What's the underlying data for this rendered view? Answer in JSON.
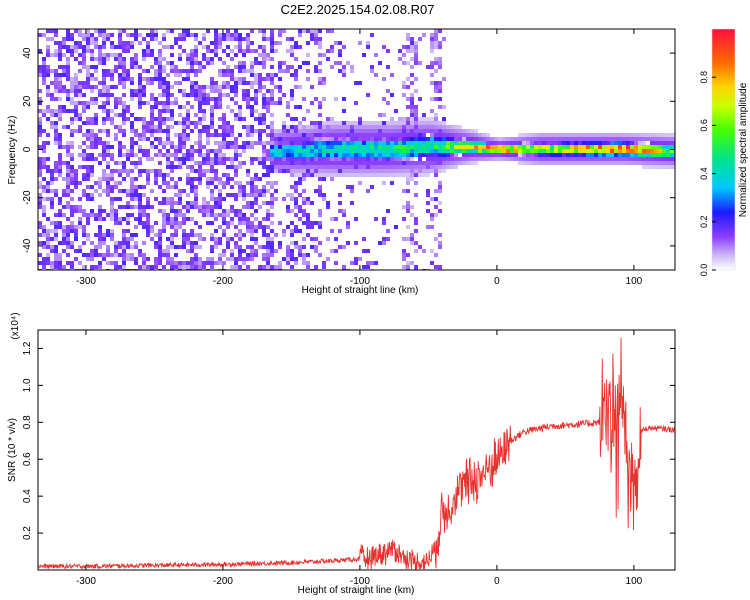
{
  "title": "C2E2.2025.154.02.08.R07",
  "chart_data": [
    {
      "type": "heatmap",
      "xlabel": "Height of straight line (km)",
      "ylabel": "Frequency (Hz)",
      "xlim": [
        -335,
        130
      ],
      "ylim": [
        -50,
        50
      ],
      "xticks": [
        -300,
        -200,
        -100,
        0,
        100
      ],
      "yticks": [
        -40,
        -20,
        0,
        20,
        40
      ],
      "colorbar": {
        "label": "Normalized spectral amplitude",
        "range": [
          0,
          1
        ],
        "ticks": [
          0.0,
          0.2,
          0.4,
          0.6,
          0.8
        ]
      },
      "ridge": [
        {
          "x": -165,
          "freq": 0,
          "halfwidth_hz": 4,
          "amp": 0.35
        },
        {
          "x": -120,
          "freq": 1,
          "halfwidth_hz": 5,
          "amp": 0.4
        },
        {
          "x": -80,
          "freq": 1,
          "halfwidth_hz": 5,
          "amp": 0.45
        },
        {
          "x": -50,
          "freq": 2,
          "halfwidth_hz": 5,
          "amp": 0.45
        },
        {
          "x": -20,
          "freq": 2,
          "halfwidth_hz": 3,
          "amp": 0.7
        },
        {
          "x": 0,
          "freq": 1,
          "halfwidth_hz": 2,
          "amp": 0.9
        },
        {
          "x": 30,
          "freq": 1,
          "halfwidth_hz": 3,
          "amp": 0.6
        },
        {
          "x": 60,
          "freq": 1,
          "halfwidth_hz": 3,
          "amp": 0.75
        },
        {
          "x": 90,
          "freq": 1,
          "halfwidth_hz": 3,
          "amp": 0.9
        },
        {
          "x": 130,
          "freq": 0,
          "halfwidth_hz": 3,
          "amp": 0.55
        }
      ]
    },
    {
      "type": "line",
      "xlabel": "Height of straight line (km)",
      "ylabel": "SNR (10 * v/v)",
      "y_multiplier": "(x10⁴)",
      "xlim": [
        -335,
        130
      ],
      "ylim": [
        0,
        1.3
      ],
      "xticks": [
        -300,
        -200,
        -100,
        0,
        100
      ],
      "yticks": [
        0.2,
        0.4,
        0.6,
        0.8,
        1.0,
        1.2
      ],
      "color": "#e8322f",
      "series": [
        {
          "x": [
            -335,
            -300,
            -250,
            -200,
            -150,
            -120,
            -100,
            -90,
            -80,
            -75,
            -70,
            -60,
            -50,
            -45,
            -40,
            -35,
            -30,
            -25,
            -20,
            -10,
            0,
            10,
            20,
            40,
            60,
            75,
            80,
            85,
            90,
            95,
            100,
            105,
            110,
            130
          ],
          "y": [
            0.02,
            0.02,
            0.025,
            0.03,
            0.04,
            0.05,
            0.06,
            0.08,
            0.1,
            0.12,
            0.08,
            0.04,
            0.05,
            0.12,
            0.3,
            0.35,
            0.4,
            0.45,
            0.48,
            0.52,
            0.6,
            0.7,
            0.75,
            0.78,
            0.79,
            0.8,
            0.85,
            0.9,
            1.0,
            0.6,
            0.4,
            0.75,
            0.77,
            0.76
          ]
        }
      ]
    }
  ]
}
